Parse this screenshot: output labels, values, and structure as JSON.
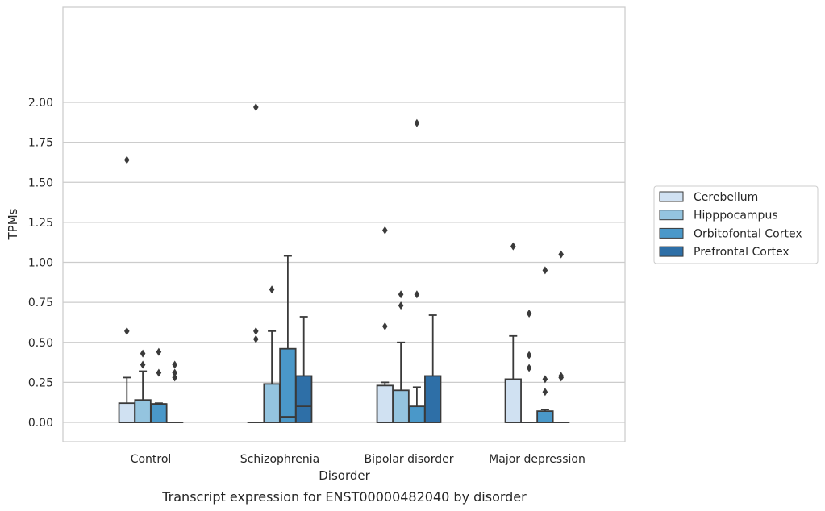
{
  "chart_data": {
    "type": "box",
    "caption": "Transcript expression for ENST00000482040 by disorder",
    "xlabel": "Disorder",
    "ylabel": "TPMs",
    "ylim": [
      -0.1,
      2.07
    ],
    "yticks": [
      "0.00",
      "0.25",
      "0.50",
      "0.75",
      "1.00",
      "1.25",
      "1.50",
      "1.75",
      "2.00"
    ],
    "ytick_values": [
      0,
      0.25,
      0.5,
      0.75,
      1.0,
      1.25,
      1.5,
      1.75,
      2.0
    ],
    "grid": "horizontal",
    "legend_position": "right",
    "categories": [
      "Control",
      "Schizophrenia",
      "Bipolar disorder",
      "Major depression"
    ],
    "series": [
      {
        "name": "Cerebellum",
        "color": "#d0e1f2",
        "boxes": [
          {
            "q1": 0,
            "median": 0,
            "q3": 0.12,
            "whisker_low": 0,
            "whisker_high": 0.28,
            "outliers": [
              0.57,
              1.64
            ]
          },
          {
            "q1": 0,
            "median": 0,
            "q3": 0,
            "whisker_low": 0,
            "whisker_high": 0,
            "outliers": [
              0.52,
              0.57,
              1.97
            ]
          },
          {
            "q1": 0,
            "median": 0,
            "q3": 0.23,
            "whisker_low": 0,
            "whisker_high": 0.25,
            "outliers": [
              0.6,
              1.2
            ]
          },
          {
            "q1": 0,
            "median": 0,
            "q3": 0.27,
            "whisker_low": 0,
            "whisker_high": 0.54,
            "outliers": [
              1.1
            ]
          }
        ]
      },
      {
        "name": "Hipppocampus",
        "color": "#94c4df",
        "boxes": [
          {
            "q1": 0,
            "median": 0,
            "q3": 0.14,
            "whisker_low": 0,
            "whisker_high": 0.32,
            "outliers": [
              0.36,
              0.43
            ]
          },
          {
            "q1": 0,
            "median": 0,
            "q3": 0.24,
            "whisker_low": 0,
            "whisker_high": 0.57,
            "outliers": [
              0.83
            ]
          },
          {
            "q1": 0,
            "median": 0,
            "q3": 0.2,
            "whisker_low": 0,
            "whisker_high": 0.5,
            "outliers": [
              0.73,
              0.8
            ]
          },
          {
            "q1": 0,
            "median": 0,
            "q3": 0,
            "whisker_low": 0,
            "whisker_high": 0,
            "outliers": [
              0.34,
              0.42,
              0.68
            ]
          }
        ]
      },
      {
        "name": "Orbitofontal Cortex",
        "color": "#4a98c9",
        "boxes": [
          {
            "q1": 0,
            "median": 0.115,
            "q3": 0.115,
            "whisker_low": 0,
            "whisker_high": 0.12,
            "outliers": [
              0.31,
              0.44
            ]
          },
          {
            "q1": 0,
            "median": 0.035,
            "q3": 0.46,
            "whisker_low": 0,
            "whisker_high": 1.04,
            "outliers": []
          },
          {
            "q1": 0,
            "median": 0,
            "q3": 0.1,
            "whisker_low": 0,
            "whisker_high": 0.22,
            "outliers": [
              0.8,
              1.87
            ]
          },
          {
            "q1": 0,
            "median": 0,
            "q3": 0.07,
            "whisker_low": 0,
            "whisker_high": 0.08,
            "outliers": [
              0.19,
              0.27,
              0.95
            ]
          }
        ]
      },
      {
        "name": "Prefrontal Cortex",
        "color": "#2e6fa7",
        "boxes": [
          {
            "q1": 0,
            "median": 0,
            "q3": 0,
            "whisker_low": 0,
            "whisker_high": 0,
            "outliers": [
              0.28,
              0.31,
              0.36
            ]
          },
          {
            "q1": 0,
            "median": 0.1,
            "q3": 0.29,
            "whisker_low": 0,
            "whisker_high": 0.66,
            "outliers": []
          },
          {
            "q1": 0,
            "median": 0,
            "q3": 0.29,
            "whisker_low": 0,
            "whisker_high": 0.67,
            "outliers": []
          },
          {
            "q1": 0,
            "median": 0,
            "q3": 0,
            "whisker_low": 0,
            "whisker_high": 0,
            "outliers": [
              0.28,
              0.29,
              1.05
            ]
          }
        ]
      }
    ]
  }
}
